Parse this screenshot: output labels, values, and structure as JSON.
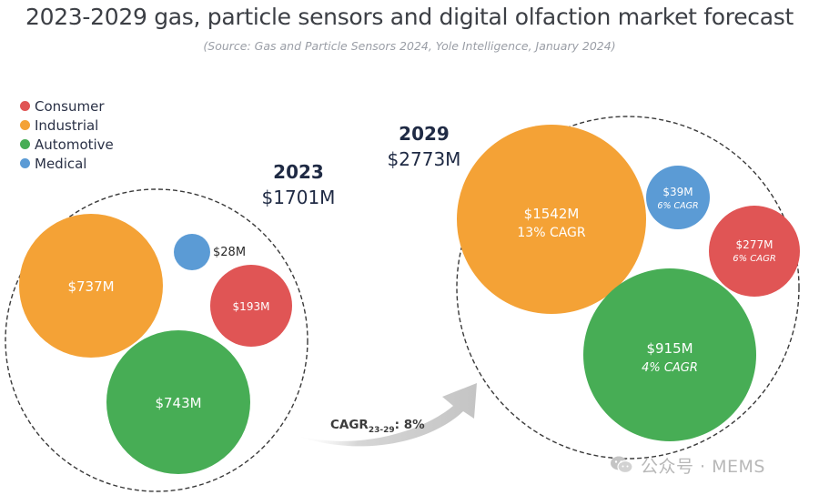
{
  "header": {
    "title": "2023-2029 gas, particle sensors and digital olfaction market forecast",
    "subtitle": "(Source: Gas and Particle Sensors 2024, Yole Intelligence, January 2024)"
  },
  "legend": {
    "items": [
      {
        "label": "Consumer",
        "color": "#e05555"
      },
      {
        "label": "Industrial",
        "color": "#f4a236"
      },
      {
        "label": "Automotive",
        "color": "#47ad55"
      },
      {
        "label": "Medical",
        "color": "#5b9bd5"
      }
    ]
  },
  "chart_data": {
    "type": "bubble",
    "title": "2023-2029 gas, particle sensors and digital olfaction market forecast",
    "unit": "$M",
    "groups": [
      {
        "year_label": "2023",
        "total_label": "$1701M",
        "total": 1701,
        "bubbles": [
          {
            "category": "Industrial",
            "value": 737,
            "label": "$737M",
            "cagr": ""
          },
          {
            "category": "Automotive",
            "value": 743,
            "label": "$743M",
            "cagr": ""
          },
          {
            "category": "Consumer",
            "value": 193,
            "label": "$193M",
            "cagr": ""
          },
          {
            "category": "Medical",
            "value": 28,
            "label": "$28M",
            "cagr": ""
          }
        ]
      },
      {
        "year_label": "2029",
        "total_label": "$2773M",
        "total": 2773,
        "bubbles": [
          {
            "category": "Industrial",
            "value": 1542,
            "label": "$1542M",
            "cagr": "13% CAGR"
          },
          {
            "category": "Automotive",
            "value": 915,
            "label": "$915M",
            "cagr": "4% CAGR"
          },
          {
            "category": "Consumer",
            "value": 277,
            "label": "$277M",
            "cagr": "6% CAGR"
          },
          {
            "category": "Medical",
            "value": 39,
            "label": "$39M",
            "cagr": "6% CAGR"
          }
        ]
      }
    ],
    "overall_cagr": {
      "prefix": "CAGR",
      "subscript": "23-29",
      "value": ": 8%"
    }
  },
  "watermark": {
    "text": "公众号 · MEMS",
    "icon": "wechat-icon"
  }
}
